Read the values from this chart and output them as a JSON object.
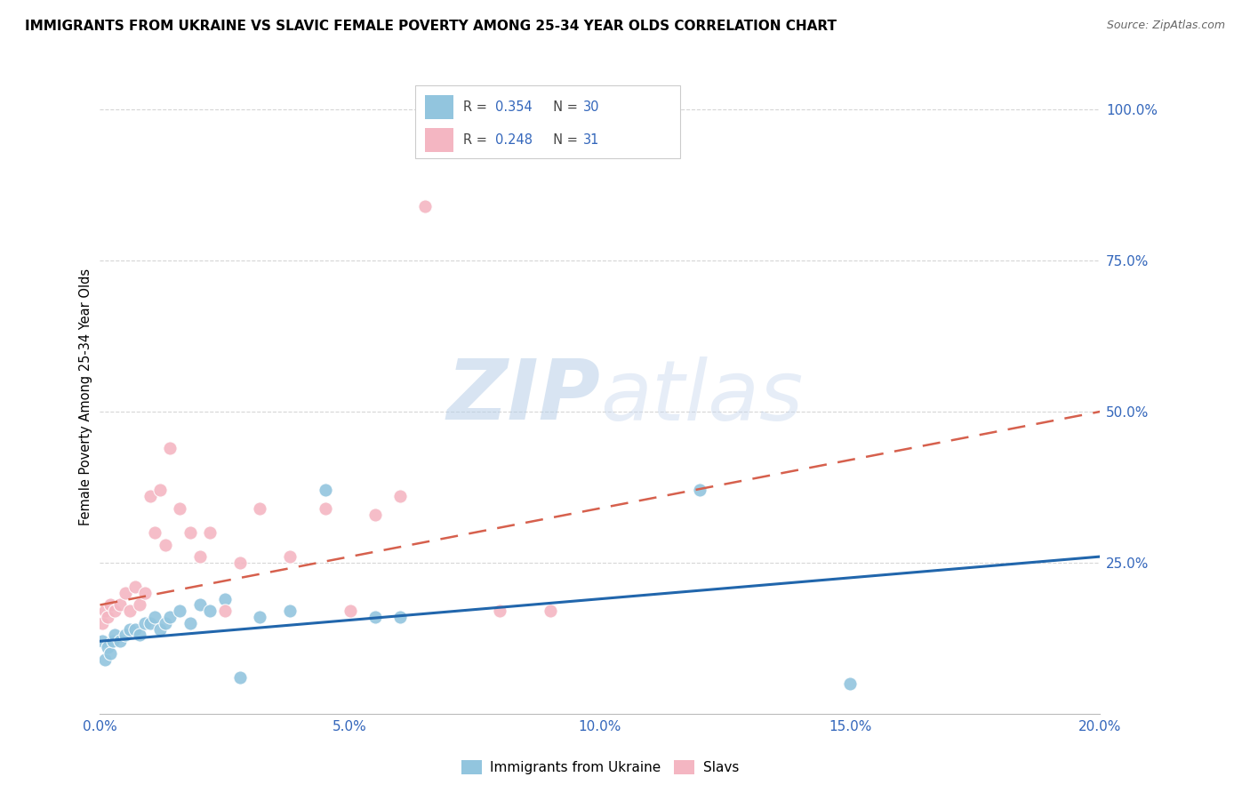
{
  "title": "IMMIGRANTS FROM UKRAINE VS SLAVIC FEMALE POVERTY AMONG 25-34 YEAR OLDS CORRELATION CHART",
  "source": "Source: ZipAtlas.com",
  "ylabel": "Female Poverty Among 25-34 Year Olds",
  "legend_label1": "Immigrants from Ukraine",
  "legend_label2": "Slavs",
  "x_min": 0.0,
  "x_max": 0.2,
  "y_min": 0.0,
  "y_max": 1.05,
  "color_ukraine": "#92c5de",
  "color_slavs": "#f4b6c2",
  "color_ukraine_line": "#2166ac",
  "color_slavs_line": "#d6604d",
  "watermark_color": "#d0dff0",
  "ukraine_x": [
    0.0005,
    0.001,
    0.0015,
    0.002,
    0.0025,
    0.003,
    0.004,
    0.005,
    0.006,
    0.007,
    0.008,
    0.009,
    0.01,
    0.011,
    0.012,
    0.013,
    0.014,
    0.016,
    0.018,
    0.02,
    0.022,
    0.025,
    0.028,
    0.032,
    0.038,
    0.045,
    0.055,
    0.06,
    0.12,
    0.15
  ],
  "ukraine_y": [
    0.12,
    0.09,
    0.11,
    0.1,
    0.12,
    0.13,
    0.12,
    0.13,
    0.14,
    0.14,
    0.13,
    0.15,
    0.15,
    0.16,
    0.14,
    0.15,
    0.16,
    0.17,
    0.15,
    0.18,
    0.17,
    0.19,
    0.06,
    0.16,
    0.17,
    0.37,
    0.16,
    0.16,
    0.37,
    0.05
  ],
  "slavs_x": [
    0.0005,
    0.001,
    0.0015,
    0.002,
    0.003,
    0.004,
    0.005,
    0.006,
    0.007,
    0.008,
    0.009,
    0.01,
    0.011,
    0.012,
    0.013,
    0.014,
    0.016,
    0.018,
    0.02,
    0.022,
    0.025,
    0.028,
    0.032,
    0.038,
    0.045,
    0.05,
    0.055,
    0.06,
    0.065,
    0.08,
    0.09
  ],
  "slavs_y": [
    0.15,
    0.17,
    0.16,
    0.18,
    0.17,
    0.18,
    0.2,
    0.17,
    0.21,
    0.18,
    0.2,
    0.36,
    0.3,
    0.37,
    0.28,
    0.44,
    0.34,
    0.3,
    0.26,
    0.3,
    0.17,
    0.25,
    0.34,
    0.26,
    0.34,
    0.17,
    0.33,
    0.36,
    0.84,
    0.17,
    0.17
  ],
  "ukraine_trend_x": [
    0.0,
    0.2
  ],
  "ukraine_trend_y": [
    0.12,
    0.26
  ],
  "slavs_trend_x": [
    0.0,
    0.2
  ],
  "slavs_trend_y": [
    0.18,
    0.5
  ]
}
